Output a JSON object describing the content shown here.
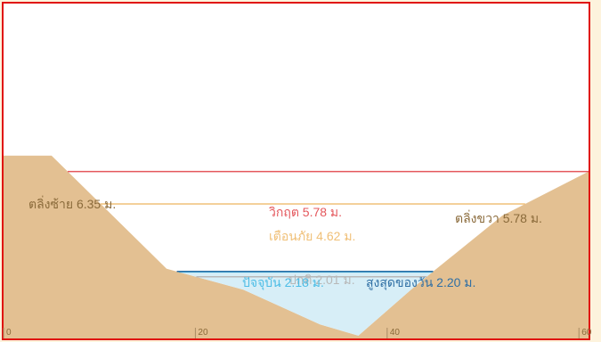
{
  "colors": {
    "border": "#e0110f",
    "bank": "#e3c092",
    "water": "#d7eef7",
    "critical": "#e4575c",
    "warning": "#f0c078",
    "normal": "#b8b8b8",
    "current": "#4dbde6",
    "max_today": "#2f6fa4",
    "bank_label": "#8a6a3a",
    "axis_label": "#8a6a3a"
  },
  "labels": {
    "left_bank": "ตลิ่งซ้าย 6.35 ม.",
    "right_bank": "ตลิ่งขวา 5.78 ม.",
    "critical": "วิกฤต 5.78 ม.",
    "warning": "เตือนภัย 4.62 ม.",
    "normal": "ปกติ 2.01 ม.",
    "current": "ปัจจุบัน 2.18 ม.",
    "max_today": "สูงสุดของวัน 2.20 ม."
  },
  "chart_data": {
    "type": "area",
    "x": [
      0,
      5,
      17,
      25,
      33,
      37,
      43,
      52,
      61
    ],
    "y": [
      6.35,
      6.35,
      2.3,
      1.55,
      0.3,
      -0.1,
      1.7,
      4.2,
      5.78
    ],
    "xlim": [
      0,
      61
    ],
    "ylim": [
      -0.2,
      11.8
    ],
    "x_ticks": [
      0,
      20,
      40,
      60
    ],
    "levels": [
      {
        "key": "critical",
        "value": 5.78
      },
      {
        "key": "warning",
        "value": 4.62
      },
      {
        "key": "normal",
        "value": 2.01
      },
      {
        "key": "current",
        "value": 2.18
      },
      {
        "key": "max_today",
        "value": 2.2
      }
    ],
    "water_level": 2.18
  }
}
